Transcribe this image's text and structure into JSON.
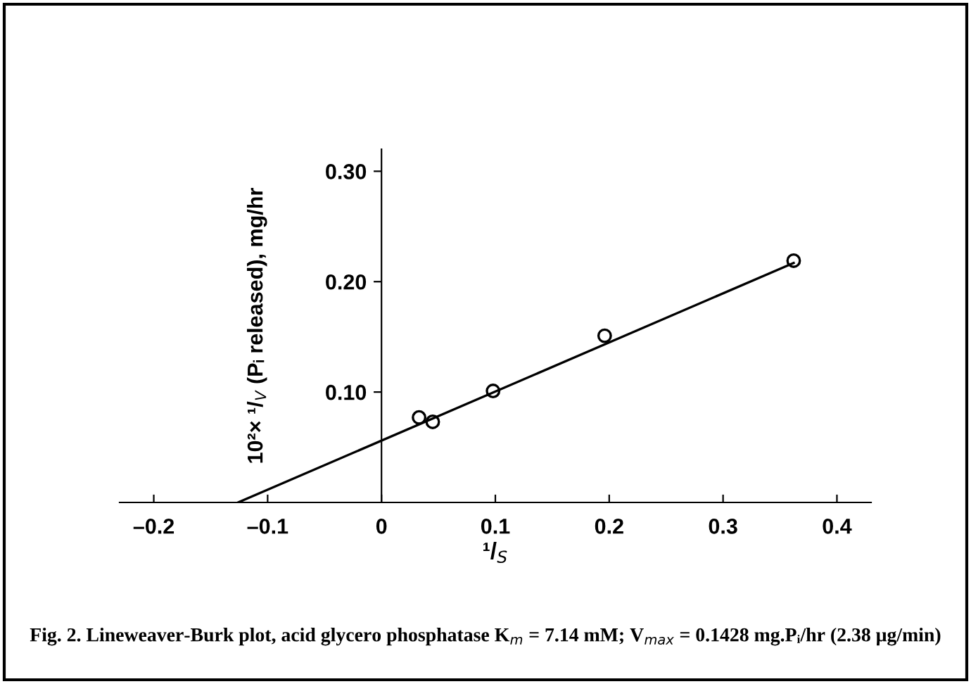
{
  "chart_data": {
    "type": "scatter",
    "xlabel": "¹/$_{S}$",
    "ylabel": "10²× ¹/$_{V}$ (Pᵢ released), mg/hr",
    "x": [
      0.033,
      0.045,
      0.098,
      0.196,
      0.362
    ],
    "series": [
      {
        "color": "#000000",
        "marker": "circle",
        "values": [
          0.077,
          0.073,
          0.101,
          0.151,
          0.219
        ]
      },
      {
        "type": "line",
        "color": "#000000",
        "x": [
          -0.126,
          0.362
        ],
        "values": [
          0,
          0.217
        ]
      }
    ],
    "xlim": [
      -0.23,
      0.43
    ],
    "ylim": [
      0,
      0.32
    ],
    "xticks": [
      {
        "value": -0.2,
        "label": "–0.2"
      },
      {
        "value": -0.1,
        "label": "–0.1"
      },
      0,
      0.1,
      0.2,
      0.3,
      0.4
    ],
    "yticks": [
      {
        "value": 0.1,
        "label": "0.10"
      },
      {
        "value": 0.2,
        "label": "0.20"
      },
      {
        "value": 0.3,
        "label": "0.30"
      }
    ],
    "grid": false,
    "legend": false,
    "annotations": [
      "Fig. 2. Lineweaver-Burk plot, acid glycero phosphatase K$_{m}$ = 7.14 mM; V$_{max}$ = 0.1428 mg.Pᵢ/hr (2.38 μg/min)"
    ]
  }
}
